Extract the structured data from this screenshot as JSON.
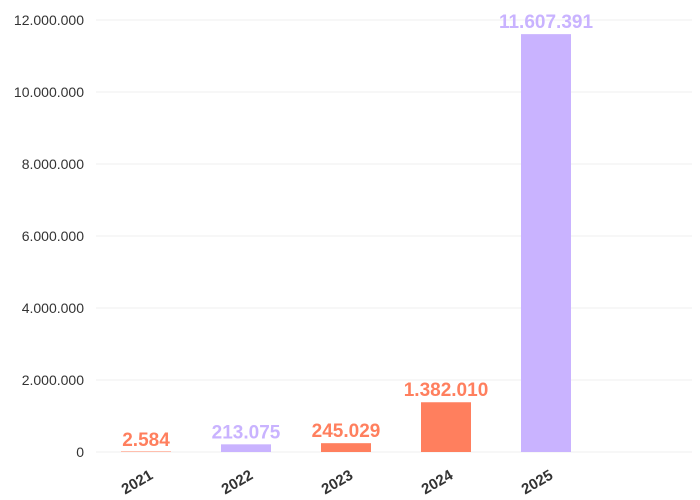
{
  "chart_data": {
    "type": "bar",
    "categories": [
      "2021",
      "2022",
      "2023",
      "2024",
      "2025"
    ],
    "values": [
      2584,
      213075,
      245029,
      1382010,
      11607391
    ],
    "value_labels": [
      "2.584",
      "213.075",
      "245.029",
      "1.382.010",
      "11.607.391"
    ],
    "bar_colors": [
      "#ff7f5e",
      "#c9b3ff",
      "#ff7f5e",
      "#ff7f5e",
      "#c9b3ff"
    ],
    "label_colors": [
      "#ff7f5e",
      "#c9b3ff",
      "#ff7f5e",
      "#ff7f5e",
      "#c9b3ff"
    ],
    "ylim": [
      0,
      12000000
    ],
    "yticks": [
      0,
      2000000,
      4000000,
      6000000,
      8000000,
      10000000,
      12000000
    ],
    "ytick_labels": [
      "0",
      "2.000.000",
      "4.000.000",
      "6.000.000",
      "8.000.000",
      "10.000.000",
      "12.000.000"
    ],
    "grid": true,
    "title": "",
    "xlabel": "",
    "ylabel": ""
  }
}
